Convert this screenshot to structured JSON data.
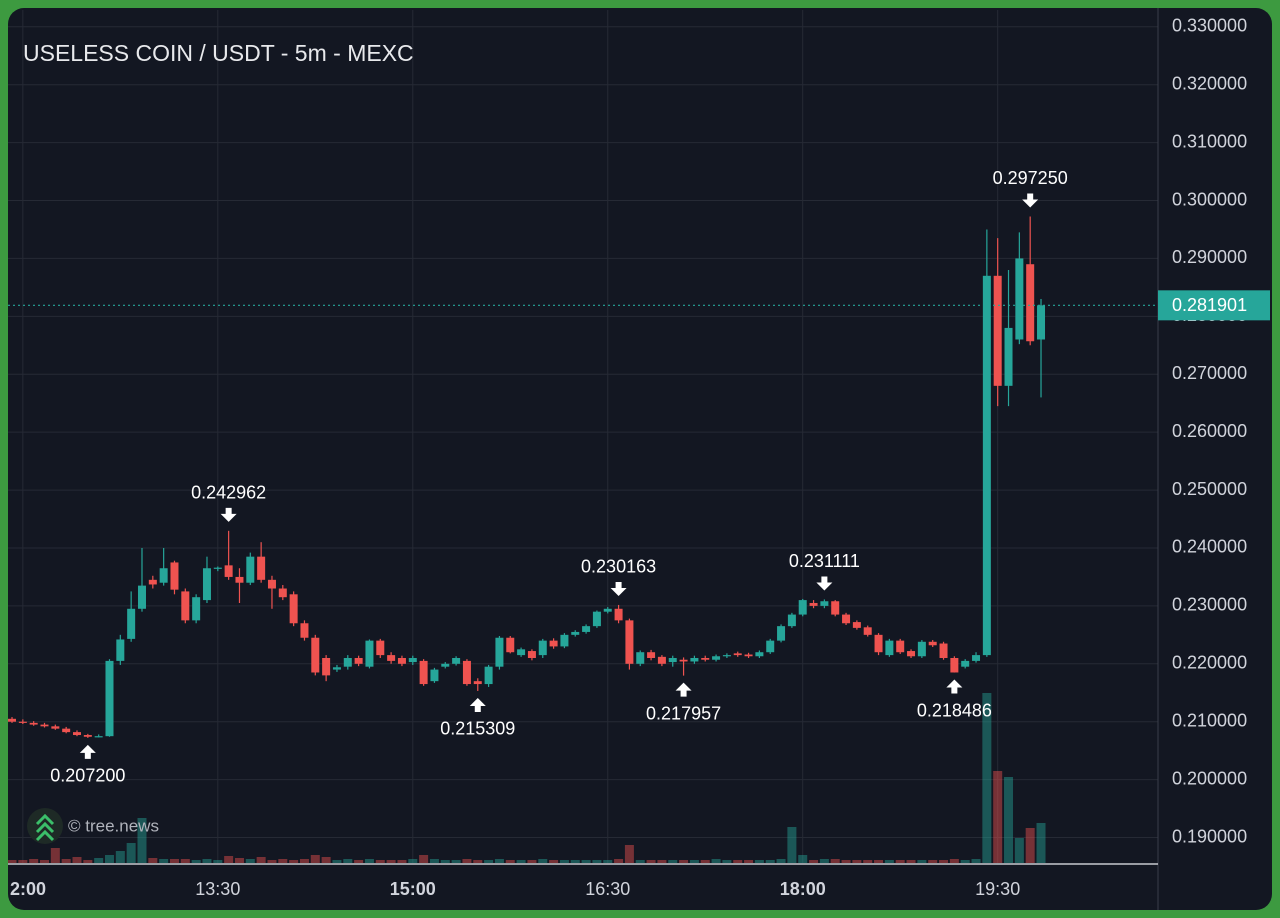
{
  "chart_data": {
    "type": "candlestick",
    "title": "USELESS COIN / USDT - 5m - MEXC",
    "watermark": "© tree.news",
    "up_color": "#26a69a",
    "down_color": "#ef5350",
    "grid": true,
    "xlim": [
      -0.37,
      105.8
    ],
    "ylim": [
      0.1856,
      0.3329
    ],
    "xticks": [
      {
        "value": 1,
        "label": "2:00",
        "bold": true
      },
      {
        "value": 19,
        "label": "13:30"
      },
      {
        "value": 37,
        "label": "15:00",
        "bold": true
      },
      {
        "value": 55,
        "label": "16:30"
      },
      {
        "value": 73,
        "label": "18:00",
        "bold": true
      },
      {
        "value": 91,
        "label": "19:30"
      }
    ],
    "yticks": [
      {
        "value": 0.19,
        "label": "0.190000"
      },
      {
        "value": 0.2,
        "label": "0.200000"
      },
      {
        "value": 0.21,
        "label": "0.210000"
      },
      {
        "value": 0.22,
        "label": "0.220000"
      },
      {
        "value": 0.23,
        "label": "0.230000"
      },
      {
        "value": 0.24,
        "label": "0.240000"
      },
      {
        "value": 0.25,
        "label": "0.250000"
      },
      {
        "value": 0.26,
        "label": "0.260000"
      },
      {
        "value": 0.27,
        "label": "0.270000"
      },
      {
        "value": 0.28,
        "label": "0.280000"
      },
      {
        "value": 0.29,
        "label": "0.290000"
      },
      {
        "value": 0.3,
        "label": "0.300000"
      },
      {
        "value": 0.31,
        "label": "0.310000"
      },
      {
        "value": 0.32,
        "label": "0.320000"
      },
      {
        "value": 0.33,
        "label": "0.330000"
      }
    ],
    "last_price": {
      "value": 0.281901,
      "label": "0.281901"
    },
    "ohlc": [
      [
        0.2105,
        0.2108,
        0.2098,
        0.21
      ],
      [
        0.21,
        0.2104,
        0.2096,
        0.2098
      ],
      [
        0.2098,
        0.2101,
        0.2093,
        0.2095
      ],
      [
        0.2095,
        0.2098,
        0.209,
        0.2092
      ],
      [
        0.2092,
        0.2095,
        0.2086,
        0.2088
      ],
      [
        0.2088,
        0.2091,
        0.208,
        0.2082
      ],
      [
        0.2082,
        0.2085,
        0.2075,
        0.2077
      ],
      [
        0.2077,
        0.2079,
        0.2072,
        0.2074
      ],
      [
        0.2074,
        0.2078,
        0.2073,
        0.2075
      ],
      [
        0.2075,
        0.2208,
        0.2074,
        0.2205
      ],
      [
        0.2205,
        0.225,
        0.2198,
        0.2242
      ],
      [
        0.2243,
        0.2325,
        0.2238,
        0.2295
      ],
      [
        0.2295,
        0.24,
        0.229,
        0.2335
      ],
      [
        0.2345,
        0.2352,
        0.233,
        0.2337
      ],
      [
        0.234,
        0.24,
        0.2335,
        0.2365
      ],
      [
        0.2375,
        0.2378,
        0.232,
        0.2328
      ],
      [
        0.2325,
        0.233,
        0.227,
        0.2275
      ],
      [
        0.2275,
        0.232,
        0.227,
        0.2315
      ],
      [
        0.231,
        0.2385,
        0.2305,
        0.2365
      ],
      [
        0.2364,
        0.2368,
        0.236,
        0.2366
      ],
      [
        0.237,
        0.242962,
        0.2345,
        0.235
      ],
      [
        0.235,
        0.2365,
        0.2305,
        0.234
      ],
      [
        0.234,
        0.2392,
        0.2336,
        0.2385
      ],
      [
        0.2385,
        0.241,
        0.234,
        0.2345
      ],
      [
        0.2345,
        0.2352,
        0.2295,
        0.233
      ],
      [
        0.233,
        0.2336,
        0.231,
        0.2315
      ],
      [
        0.232,
        0.2325,
        0.2265,
        0.227
      ],
      [
        0.227,
        0.2275,
        0.224,
        0.2245
      ],
      [
        0.2245,
        0.225,
        0.218,
        0.2185
      ],
      [
        0.221,
        0.2215,
        0.217,
        0.218
      ],
      [
        0.219,
        0.2198,
        0.2186,
        0.2194
      ],
      [
        0.2195,
        0.2215,
        0.219,
        0.221
      ],
      [
        0.221,
        0.2214,
        0.2196,
        0.22
      ],
      [
        0.2195,
        0.2242,
        0.2192,
        0.224
      ],
      [
        0.224,
        0.2243,
        0.221,
        0.2215
      ],
      [
        0.2215,
        0.222,
        0.22,
        0.2205
      ],
      [
        0.221,
        0.2214,
        0.2196,
        0.22
      ],
      [
        0.2203,
        0.2214,
        0.2198,
        0.221
      ],
      [
        0.2205,
        0.2208,
        0.2162,
        0.2165
      ],
      [
        0.217,
        0.2193,
        0.2167,
        0.219
      ],
      [
        0.2195,
        0.2203,
        0.2192,
        0.22
      ],
      [
        0.22,
        0.2213,
        0.2197,
        0.221
      ],
      [
        0.2205,
        0.2208,
        0.2162,
        0.2165
      ],
      [
        0.217,
        0.2175,
        0.215309,
        0.2165
      ],
      [
        0.2165,
        0.2198,
        0.216,
        0.2195
      ],
      [
        0.2195,
        0.2248,
        0.219,
        0.2245
      ],
      [
        0.2245,
        0.2248,
        0.2218,
        0.222
      ],
      [
        0.2215,
        0.2228,
        0.2212,
        0.2225
      ],
      [
        0.2222,
        0.2225,
        0.2206,
        0.221
      ],
      [
        0.2215,
        0.2243,
        0.221,
        0.224
      ],
      [
        0.224,
        0.2244,
        0.2226,
        0.223
      ],
      [
        0.223,
        0.2253,
        0.2227,
        0.225
      ],
      [
        0.225,
        0.2258,
        0.2247,
        0.2255
      ],
      [
        0.2255,
        0.2268,
        0.2252,
        0.2265
      ],
      [
        0.2265,
        0.2292,
        0.2262,
        0.229
      ],
      [
        0.229,
        0.2298,
        0.2287,
        0.2295
      ],
      [
        0.2295,
        0.230163,
        0.227,
        0.2275
      ],
      [
        0.2275,
        0.2278,
        0.219,
        0.22
      ],
      [
        0.22,
        0.2223,
        0.2196,
        0.222
      ],
      [
        0.222,
        0.2224,
        0.2206,
        0.221
      ],
      [
        0.2212,
        0.2215,
        0.2196,
        0.22
      ],
      [
        0.2203,
        0.2214,
        0.2195,
        0.221
      ],
      [
        0.2207,
        0.2211,
        0.217957,
        0.2204
      ],
      [
        0.2204,
        0.2214,
        0.22,
        0.221
      ],
      [
        0.221,
        0.2214,
        0.2204,
        0.2207
      ],
      [
        0.2207,
        0.2216,
        0.2204,
        0.2213
      ],
      [
        0.2213,
        0.2218,
        0.221,
        0.2215
      ],
      [
        0.2218,
        0.2221,
        0.2212,
        0.2215
      ],
      [
        0.2216,
        0.2219,
        0.221,
        0.2213
      ],
      [
        0.2213,
        0.2223,
        0.221,
        0.222
      ],
      [
        0.222,
        0.2243,
        0.2217,
        0.224
      ],
      [
        0.224,
        0.2268,
        0.2237,
        0.2265
      ],
      [
        0.2265,
        0.2288,
        0.2262,
        0.2285
      ],
      [
        0.2285,
        0.2312,
        0.2282,
        0.231
      ],
      [
        0.2305,
        0.231,
        0.2296,
        0.23
      ],
      [
        0.23,
        0.231111,
        0.2296,
        0.2308
      ],
      [
        0.2308,
        0.231,
        0.2282,
        0.2285
      ],
      [
        0.2285,
        0.2288,
        0.2267,
        0.227
      ],
      [
        0.2272,
        0.2275,
        0.2259,
        0.2262
      ],
      [
        0.2263,
        0.2266,
        0.2247,
        0.225
      ],
      [
        0.225,
        0.2253,
        0.2215,
        0.222
      ],
      [
        0.2215,
        0.2243,
        0.2212,
        0.224
      ],
      [
        0.224,
        0.2243,
        0.2217,
        0.222
      ],
      [
        0.2222,
        0.2225,
        0.221,
        0.2213
      ],
      [
        0.2213,
        0.2241,
        0.221,
        0.2238
      ],
      [
        0.2238,
        0.2241,
        0.2229,
        0.2232
      ],
      [
        0.2235,
        0.2238,
        0.2207,
        0.221
      ],
      [
        0.221,
        0.2213,
        0.218486,
        0.2185
      ],
      [
        0.2195,
        0.2208,
        0.2192,
        0.2205
      ],
      [
        0.2205,
        0.222,
        0.2202,
        0.2215
      ],
      [
        0.2215,
        0.295,
        0.2212,
        0.287
      ],
      [
        0.287,
        0.2935,
        0.2645,
        0.268
      ],
      [
        0.268,
        0.288,
        0.2645,
        0.278
      ],
      [
        0.276,
        0.2945,
        0.2752,
        0.29
      ],
      [
        0.289,
        0.29725,
        0.275,
        0.2757
      ],
      [
        0.276,
        0.283,
        0.266,
        0.281901
      ]
    ],
    "volumes": [
      3,
      3,
      4,
      3,
      15,
      4,
      6,
      3,
      5,
      8,
      12,
      20,
      45,
      5,
      4,
      4,
      4,
      3,
      4,
      3,
      7,
      5,
      4,
      6,
      3,
      4,
      3,
      4,
      8,
      6,
      3,
      4,
      3,
      4,
      3,
      3,
      3,
      4,
      8,
      4,
      3,
      3,
      4,
      3,
      3,
      4,
      3,
      3,
      3,
      4,
      3,
      3,
      3,
      3,
      3,
      3,
      4,
      18,
      3,
      3,
      3,
      3,
      3,
      3,
      3,
      4,
      3,
      3,
      3,
      3,
      3,
      4,
      36,
      8,
      3,
      4,
      4,
      3,
      3,
      3,
      3,
      3,
      3,
      3,
      3,
      3,
      3,
      4,
      3,
      4,
      170,
      92,
      86,
      25,
      35,
      40
    ],
    "annotations": [
      {
        "index": 7,
        "value": 0.2072,
        "label": "0.207200",
        "side": "below"
      },
      {
        "index": 20,
        "value": 0.242962,
        "label": "0.242962",
        "side": "above"
      },
      {
        "index": 43,
        "value": 0.215309,
        "label": "0.215309",
        "side": "below"
      },
      {
        "index": 56,
        "value": 0.230163,
        "label": "0.230163",
        "side": "above"
      },
      {
        "index": 62,
        "value": 0.217957,
        "label": "0.217957",
        "side": "below"
      },
      {
        "index": 75,
        "value": 0.231111,
        "label": "0.231111",
        "side": "above"
      },
      {
        "index": 87,
        "value": 0.218486,
        "label": "0.218486",
        "side": "below"
      },
      {
        "index": 94,
        "value": 0.29725,
        "label": "0.297250",
        "side": "above"
      }
    ]
  }
}
